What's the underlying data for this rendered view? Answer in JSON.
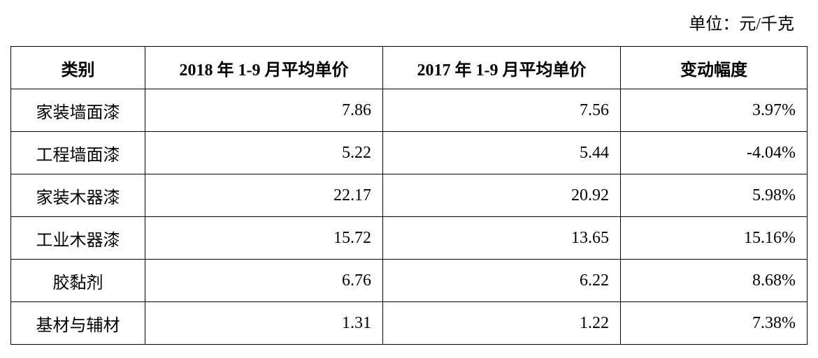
{
  "unit": "单位：元/千克",
  "table": {
    "header": [
      "类别",
      "2018 年 1-9 月平均单价",
      "2017 年 1-9 月平均单价",
      "变动幅度"
    ],
    "rows": [
      [
        "家装墙面漆",
        "7.86",
        "7.56",
        "3.97%"
      ],
      [
        "工程墙面漆",
        "5.22",
        "5.44",
        "-4.04%"
      ],
      [
        "家装木器漆",
        "22.17",
        "20.92",
        "5.98%"
      ],
      [
        "工业木器漆",
        "15.72",
        "13.65",
        "15.16%"
      ],
      [
        "胶黏剂",
        "6.76",
        "6.22",
        "8.68%"
      ],
      [
        "基材与辅材",
        "1.31",
        "1.22",
        "7.38%"
      ]
    ]
  }
}
